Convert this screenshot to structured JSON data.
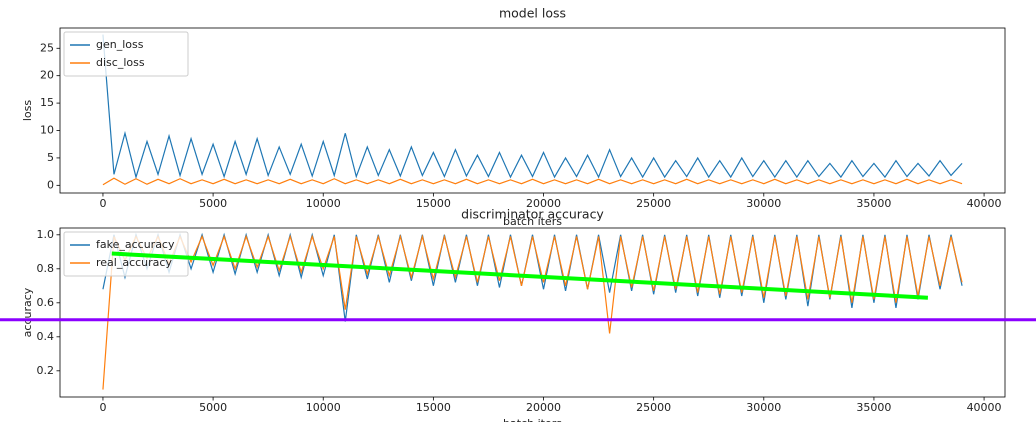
{
  "chart_data": [
    {
      "type": "line",
      "title": "model loss",
      "x_label": "batch iters",
      "y_label": "loss",
      "x": [
        0,
        500,
        1000,
        1500,
        2000,
        2500,
        3000,
        3500,
        4000,
        4500,
        5000,
        5500,
        6000,
        6500,
        7000,
        7500,
        8000,
        8500,
        9000,
        9500,
        10000,
        10500,
        11000,
        11500,
        12000,
        12500,
        13000,
        13500,
        14000,
        14500,
        15000,
        15500,
        16000,
        16500,
        17000,
        17500,
        18000,
        18500,
        19000,
        19500,
        20000,
        20500,
        21000,
        21500,
        22000,
        22500,
        23000,
        23500,
        24000,
        24500,
        25000,
        25500,
        26000,
        26500,
        27000,
        27500,
        28000,
        28500,
        29000,
        29500,
        30000,
        30500,
        31000,
        31500,
        32000,
        32500,
        33000,
        33500,
        34000,
        34500,
        35000,
        35500,
        36000,
        36500,
        37000,
        37500,
        38000,
        38500,
        39000
      ],
      "series": [
        {
          "name": "gen_loss",
          "color": "#1f77b4",
          "values": [
            27.5,
            2.0,
            9.5,
            1.5,
            8,
            2,
            9,
            1.8,
            8.5,
            2,
            7.5,
            1.6,
            8,
            2,
            8.5,
            1.8,
            7,
            2,
            7.5,
            1.7,
            8,
            1.8,
            9.5,
            1.6,
            7,
            1.8,
            6.5,
            1.7,
            7,
            1.8,
            6,
            1.6,
            6.5,
            1.7,
            5.5,
            1.6,
            6,
            1.5,
            5.5,
            1.6,
            6,
            1.5,
            5,
            1.6,
            5.5,
            1.5,
            6.5,
            1.6,
            5,
            1.5,
            5,
            1.5,
            4.5,
            1.6,
            5,
            1.5,
            4.5,
            1.5,
            5,
            1.6,
            4.5,
            1.5,
            4.5,
            1.5,
            4.5,
            1.6,
            4,
            1.5,
            4.5,
            1.6,
            4,
            1.5,
            4.5,
            1.6,
            4,
            1.7,
            4.5,
            1.8,
            4
          ]
        },
        {
          "name": "disc_loss",
          "color": "#ff7f0e",
          "values": [
            0.1,
            1.3,
            0.2,
            1.2,
            0.2,
            1.1,
            0.3,
            1.2,
            0.3,
            1.0,
            0.3,
            1.1,
            0.3,
            1.0,
            0.3,
            1.0,
            0.3,
            1.1,
            0.3,
            1.0,
            0.3,
            1.2,
            0.3,
            1.0,
            0.3,
            1.0,
            0.3,
            1.1,
            0.3,
            1.0,
            0.3,
            1.0,
            0.3,
            1.1,
            0.3,
            1.0,
            0.3,
            1.0,
            0.3,
            1.1,
            0.3,
            1.0,
            0.3,
            1.0,
            0.3,
            1.1,
            0.3,
            1.0,
            0.3,
            1.0,
            0.3,
            1.0,
            0.3,
            1.1,
            0.3,
            1.0,
            0.3,
            1.0,
            0.3,
            1.0,
            0.3,
            1.1,
            0.3,
            1.0,
            0.3,
            1.0,
            0.3,
            1.0,
            0.3,
            1.0,
            0.3,
            1.0,
            0.3,
            1.1,
            0.3,
            1.0,
            0.3,
            1.0,
            0.3
          ]
        }
      ],
      "xlim": [
        -1950,
        40950
      ],
      "xticks": [
        0,
        5000,
        10000,
        15000,
        20000,
        25000,
        30000,
        35000,
        40000
      ],
      "ylim": [
        -1.4,
        28.7
      ],
      "yticks": [
        0,
        5,
        10,
        15,
        20,
        25
      ],
      "legend": "upper left"
    },
    {
      "type": "line",
      "title": "discriminator accuracy",
      "x_label": "batch iters",
      "y_label": "accuracy",
      "x": [
        0,
        500,
        1000,
        1500,
        2000,
        2500,
        3000,
        3500,
        4000,
        4500,
        5000,
        5500,
        6000,
        6500,
        7000,
        7500,
        8000,
        8500,
        9000,
        9500,
        10000,
        10500,
        11000,
        11500,
        12000,
        12500,
        13000,
        13500,
        14000,
        14500,
        15000,
        15500,
        16000,
        16500,
        17000,
        17500,
        18000,
        18500,
        19000,
        19500,
        20000,
        20500,
        21000,
        21500,
        22000,
        22500,
        23000,
        23500,
        24000,
        24500,
        25000,
        25500,
        26000,
        26500,
        27000,
        27500,
        28000,
        28500,
        29000,
        29500,
        30000,
        30500,
        31000,
        31500,
        32000,
        32500,
        33000,
        33500,
        34000,
        34500,
        35000,
        35500,
        36000,
        36500,
        37000,
        37500,
        38000,
        38500,
        39000
      ],
      "series": [
        {
          "name": "fake_accuracy",
          "color": "#1f77b4",
          "values": [
            0.68,
            1.0,
            0.75,
            1.0,
            0.8,
            1.0,
            0.78,
            1.0,
            0.8,
            1.0,
            0.78,
            1.0,
            0.77,
            1.0,
            0.78,
            1.0,
            0.76,
            1.0,
            0.75,
            1.0,
            0.76,
            1.0,
            0.49,
            1.0,
            0.74,
            1.0,
            0.72,
            1.0,
            0.73,
            1.0,
            0.7,
            1.0,
            0.72,
            1.0,
            0.7,
            1.0,
            0.69,
            1.0,
            0.7,
            1.0,
            0.68,
            1.0,
            0.67,
            1.0,
            0.68,
            1.0,
            0.66,
            1.0,
            0.67,
            1.0,
            0.65,
            1.0,
            0.66,
            1.0,
            0.64,
            1.0,
            0.63,
            1.0,
            0.64,
            1.0,
            0.6,
            1.0,
            0.62,
            1.0,
            0.58,
            1.0,
            0.62,
            1.0,
            0.57,
            1.0,
            0.6,
            1.0,
            0.57,
            1.0,
            0.62,
            1.0,
            0.68,
            1.0,
            0.7
          ]
        },
        {
          "name": "real_accuracy",
          "color": "#ff7f0e",
          "values": [
            0.09,
            0.99,
            0.85,
            0.99,
            0.86,
            0.99,
            0.83,
            0.99,
            0.84,
            0.99,
            0.82,
            0.99,
            0.8,
            0.99,
            0.81,
            0.99,
            0.79,
            0.99,
            0.78,
            0.99,
            0.8,
            0.99,
            0.56,
            0.99,
            0.77,
            0.99,
            0.76,
            0.99,
            0.75,
            0.99,
            0.74,
            0.99,
            0.75,
            0.99,
            0.72,
            0.99,
            0.73,
            0.99,
            0.7,
            0.99,
            0.72,
            0.99,
            0.7,
            0.99,
            0.68,
            0.99,
            0.42,
            0.99,
            0.69,
            0.99,
            0.67,
            0.99,
            0.68,
            0.99,
            0.66,
            0.99,
            0.65,
            0.99,
            0.66,
            0.99,
            0.63,
            0.99,
            0.64,
            0.99,
            0.62,
            0.99,
            0.63,
            0.99,
            0.6,
            0.99,
            0.62,
            0.99,
            0.6,
            0.99,
            0.64,
            0.99,
            0.7,
            0.99,
            0.72
          ]
        }
      ],
      "xlim": [
        -1950,
        40950
      ],
      "xticks": [
        0,
        5000,
        10000,
        15000,
        20000,
        25000,
        30000,
        35000,
        40000
      ],
      "ylim": [
        0.046,
        1.04
      ],
      "yticks": [
        0.2,
        0.4,
        0.6,
        0.8,
        {
          "value": 1,
          "label": "1.0"
        }
      ],
      "legend": "upper left",
      "annotations": [
        {
          "type": "hline",
          "y": 0.5,
          "color": "#8b00ff"
        },
        {
          "type": "segment",
          "x": [
            400,
            37450
          ],
          "y": [
            0.89,
            0.63
          ],
          "color": "#00ff00"
        }
      ]
    }
  ]
}
